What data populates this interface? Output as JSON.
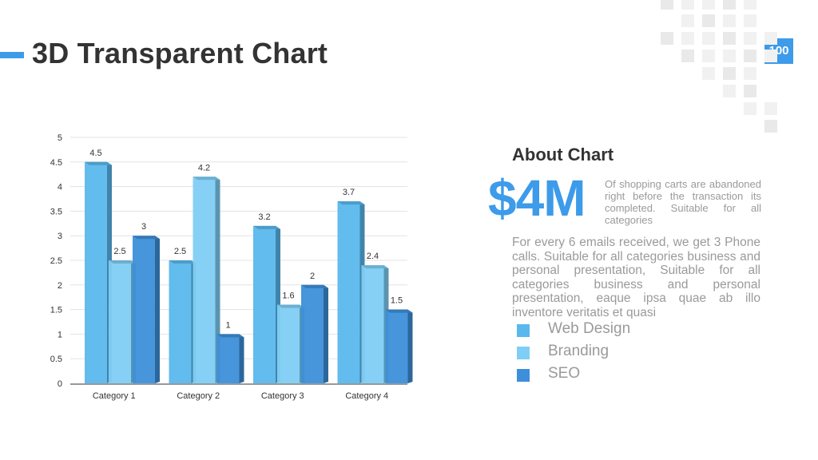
{
  "slide": {
    "title": "3D Transparent Chart",
    "page_number": "100"
  },
  "about": {
    "title": "About Chart",
    "stat": "$4M",
    "stat_description": "Of shopping carts are abandoned right before the transaction its completed. Suitable for all categories",
    "paragraph": "For every 6 emails received, we get 3 Phone calls. Suitable for all categories business and personal presentation, Suitable for all categories business and personal presentation, eaque ipsa quae ab illo inventore veritatis et quasi"
  },
  "colors": {
    "accent": "#3d9be9",
    "series": [
      "#5ab8ec",
      "#7fcef5",
      "#3d8fd9"
    ],
    "text": "#333333",
    "muted": "#9a9a9a"
  },
  "chart_data": {
    "type": "bar",
    "title": "",
    "xlabel": "",
    "ylabel": "",
    "ylim": [
      0,
      5
    ],
    "yticks": [
      "0",
      "0.5",
      "1",
      "1.5",
      "2",
      "2.5",
      "3",
      "3.5",
      "4",
      "4.5",
      "5"
    ],
    "grid": true,
    "categories": [
      "Category 1",
      "Category 2",
      "Category 3",
      "Category 4"
    ],
    "series": [
      {
        "name": "Web Design",
        "values": [
          4.5,
          2.5,
          3.2,
          3.7
        ]
      },
      {
        "name": "Branding",
        "values": [
          2.5,
          4.2,
          1.6,
          2.4
        ]
      },
      {
        "name": "SEO",
        "values": [
          3,
          1,
          2,
          1.5
        ]
      }
    ]
  }
}
